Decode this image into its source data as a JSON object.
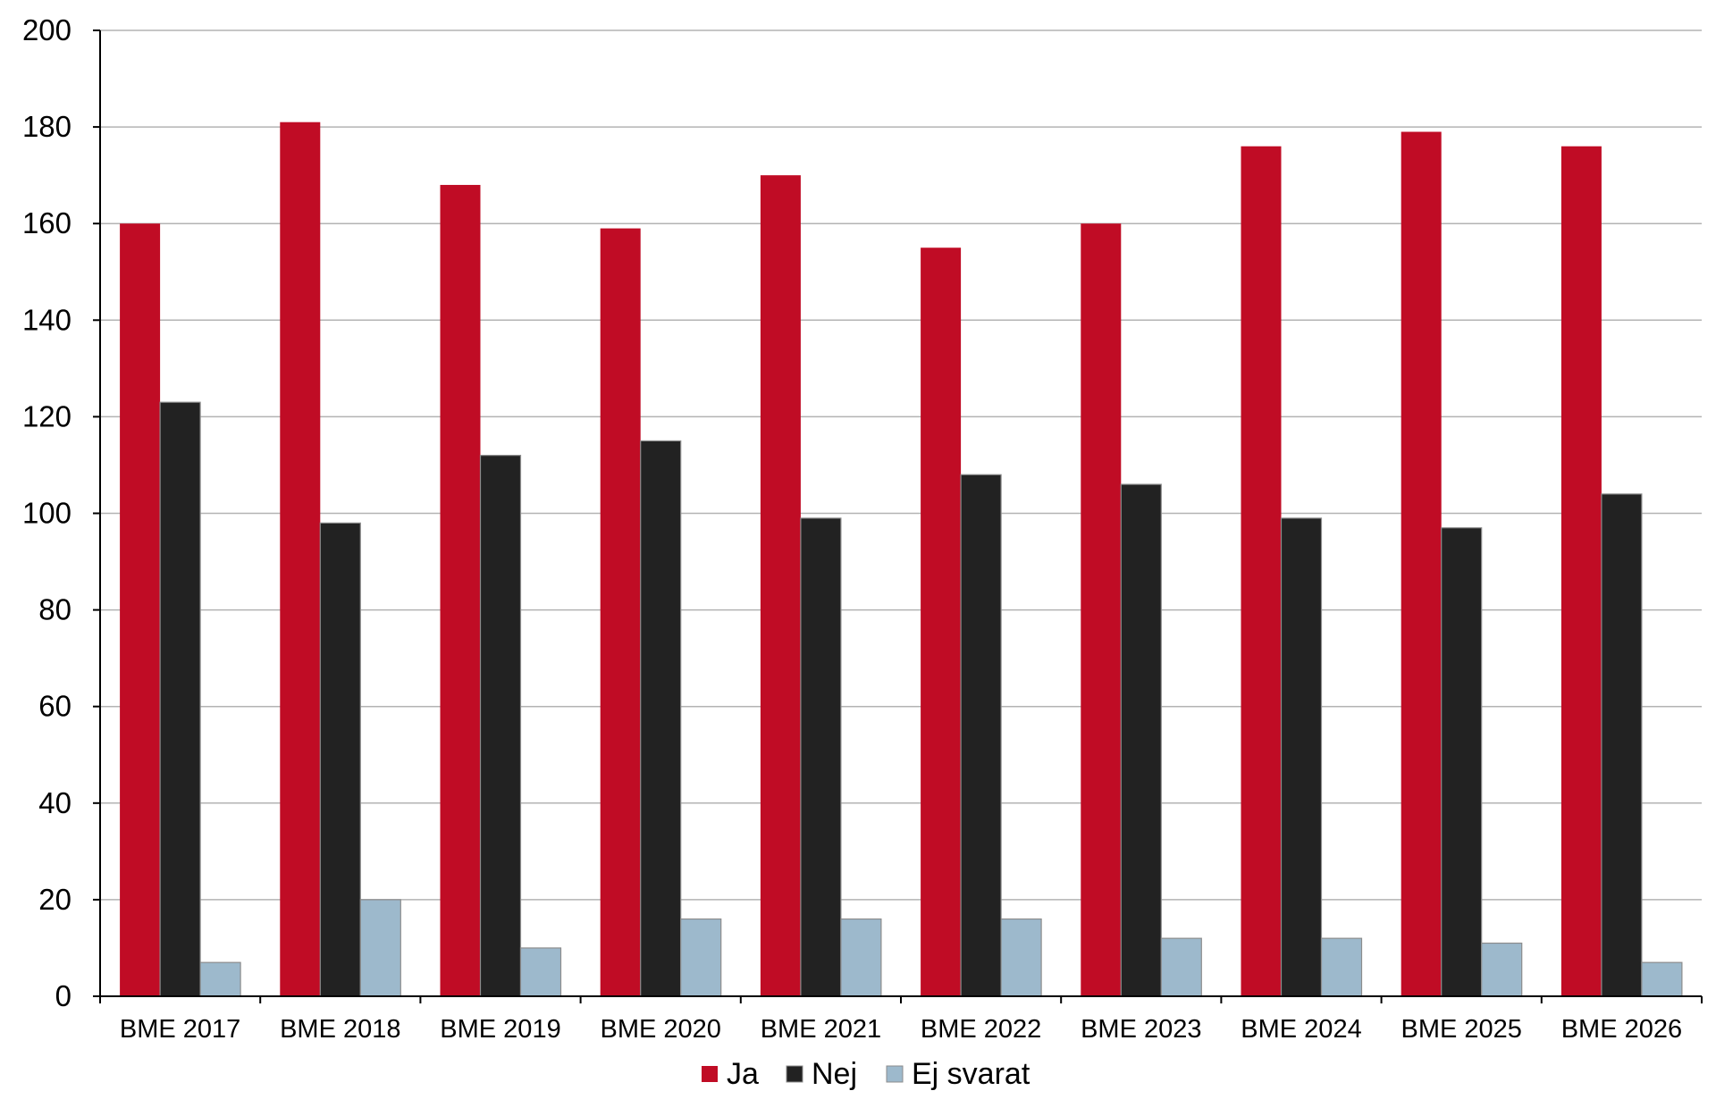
{
  "chart_data": {
    "type": "bar",
    "title": "",
    "xlabel": "",
    "ylabel": "",
    "ylim": [
      0,
      200
    ],
    "yticks": [
      "0",
      "20",
      "40",
      "60",
      "80",
      "100",
      "120",
      "140",
      "160",
      "180",
      "200"
    ],
    "grid": true,
    "legend_position": "bottom-center",
    "categories": [
      "BME 2017",
      "BME 2018",
      "BME 2019",
      "BME 2020",
      "BME 2021",
      "BME 2022",
      "BME 2023",
      "BME 2024",
      "BME 2025",
      "BME 2026"
    ],
    "series": [
      {
        "name": "Ja",
        "color": "#C00C25",
        "values": [
          160,
          181,
          168,
          159,
          170,
          155,
          160,
          176,
          179,
          176
        ]
      },
      {
        "name": "Nej",
        "color": "#222222",
        "values": [
          123,
          98,
          112,
          115,
          99,
          108,
          106,
          99,
          97,
          104
        ]
      },
      {
        "name": "Ej svarat",
        "color": "#9DB9CC",
        "values": [
          7,
          20,
          10,
          16,
          16,
          16,
          12,
          12,
          11,
          7
        ]
      }
    ]
  }
}
